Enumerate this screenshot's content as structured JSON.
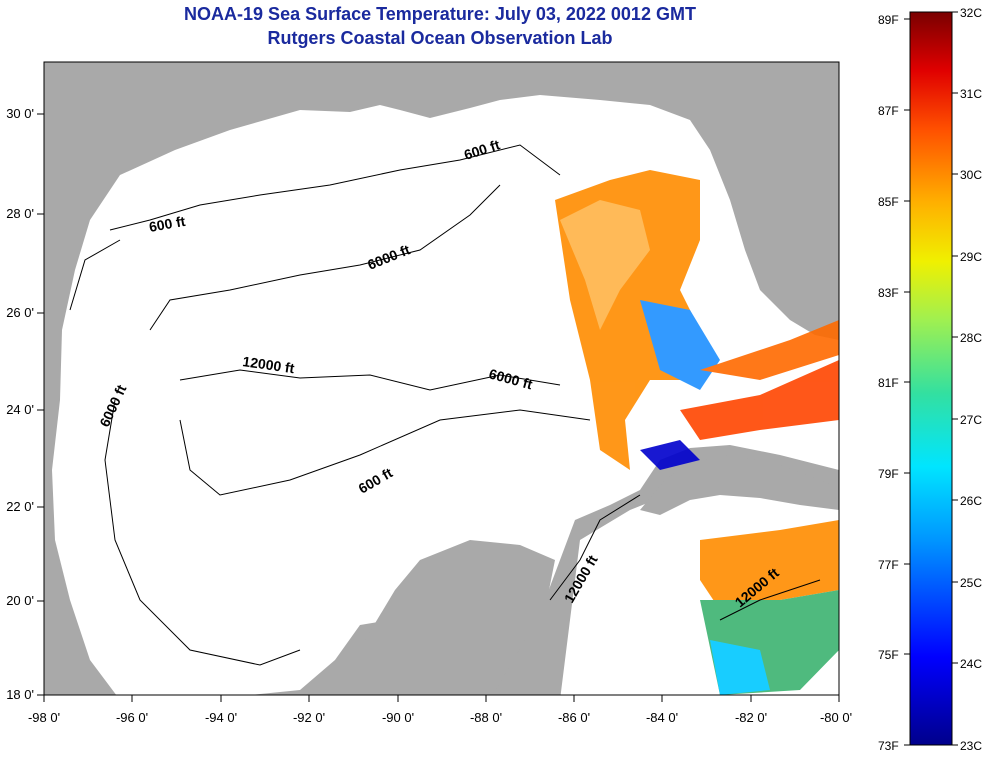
{
  "header": {
    "title_line1": "NOAA-19 Sea Surface Temperature:  July 03, 2022 0012 GMT",
    "title_line2": "Rutgers Coastal Ocean Observation Lab"
  },
  "map": {
    "lon_ticks": [
      "-98 0'",
      "-96 0'",
      "-94 0'",
      "-92 0'",
      "-90 0'",
      "-88 0'",
      "-86 0'",
      "-84 0'",
      "-82 0'",
      "-80 0'"
    ],
    "lat_ticks": [
      "30 0'",
      "28 0'",
      "26 0'",
      "24 0'",
      "22 0'",
      "20 0'",
      "18 0'"
    ],
    "contour_labels": [
      "600 ft",
      "600 ft",
      "6000 ft",
      "12000 ft",
      "6000 ft",
      "6000 ft",
      "600 ft",
      "12000 ft",
      "12000 ft"
    ],
    "colors": {
      "land": "#a9a9a9",
      "ocean": "#ffffff"
    }
  },
  "colorbar": {
    "fahrenheit_labels": [
      "89F",
      "87F",
      "85F",
      "83F",
      "81F",
      "79F",
      "77F",
      "75F",
      "73F"
    ],
    "celsius_labels": [
      "32C",
      "31C",
      "30C",
      "29C",
      "28C",
      "27C",
      "26C",
      "25C",
      "24C",
      "23C"
    ],
    "range_c": [
      23,
      32
    ],
    "range_f": [
      73,
      89
    ]
  }
}
